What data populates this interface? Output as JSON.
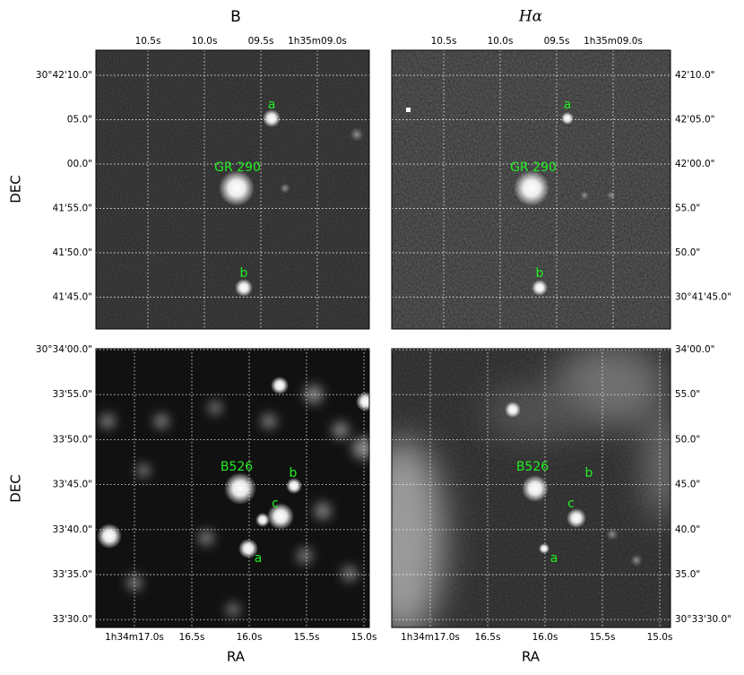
{
  "column_titles": [
    "B",
    "Hα"
  ],
  "axis_labels": {
    "y": "DEC",
    "x": "RA"
  },
  "top_row": {
    "ra_ticks": [
      "10.5s",
      "10.0s",
      "09.5s",
      "1h35m09.0s"
    ],
    "left_dec_ticks": [
      "30°42'10.0\"",
      "05.0\"",
      "00.0\"",
      "41'55.0\"",
      "41'50.0\"",
      "41'45.0\""
    ],
    "right_dec_ticks": [
      "42'10.0\"",
      "42'05.0\"",
      "42'00.0\"",
      "55.0\"",
      "50.0\"",
      "30°41'45.0\""
    ],
    "labels": [
      "a",
      "GR 290",
      "b"
    ]
  },
  "bottom_row": {
    "ra_ticks": [
      "1h34m17.0s",
      "16.5s",
      "16.0s",
      "15.5s",
      "15.0s"
    ],
    "left_dec_ticks": [
      "30°34'00.0\"",
      "33'55.0\"",
      "33'50.0\"",
      "33'45.0\"",
      "33'40.0\"",
      "33'35.0\"",
      "33'30.0\""
    ],
    "right_dec_ticks": [
      "34'00.0\"",
      "55.0\"",
      "50.0\"",
      "45.0\"",
      "40.0\"",
      "35.0\"",
      "30°33'30.0\""
    ],
    "labels": [
      "B526",
      "b",
      "c",
      "a"
    ]
  }
}
